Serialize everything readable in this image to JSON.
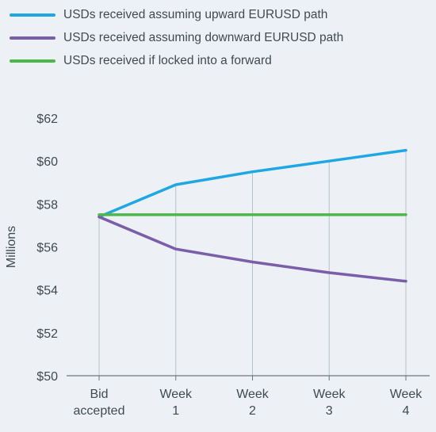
{
  "chart_data": {
    "type": "line",
    "categories": [
      [
        "Bid",
        "accepted"
      ],
      [
        "Week",
        "1"
      ],
      [
        "Week",
        "2"
      ],
      [
        "Week",
        "3"
      ],
      [
        "Week",
        "4"
      ]
    ],
    "series": [
      {
        "name": "USDs received assuming upward EURUSD path",
        "color": "#1ea7e4",
        "values": [
          57.4,
          58.9,
          59.5,
          60.0,
          60.5
        ]
      },
      {
        "name": "USDs received assuming downward EURUSD path",
        "color": "#7a5ea8",
        "values": [
          57.4,
          55.9,
          55.3,
          54.8,
          54.4
        ]
      },
      {
        "name": "USDs received if locked into a forward",
        "color": "#4cb84a",
        "values": [
          57.5,
          57.5,
          57.5,
          57.5,
          57.5
        ]
      }
    ],
    "title": "",
    "xlabel": "",
    "ylabel": "Millions",
    "ylim": [
      50,
      62
    ],
    "yticks": [
      50,
      52,
      54,
      56,
      58,
      60,
      62
    ],
    "ytick_prefix": "$",
    "grid": "vertical",
    "legend": "top-left"
  }
}
